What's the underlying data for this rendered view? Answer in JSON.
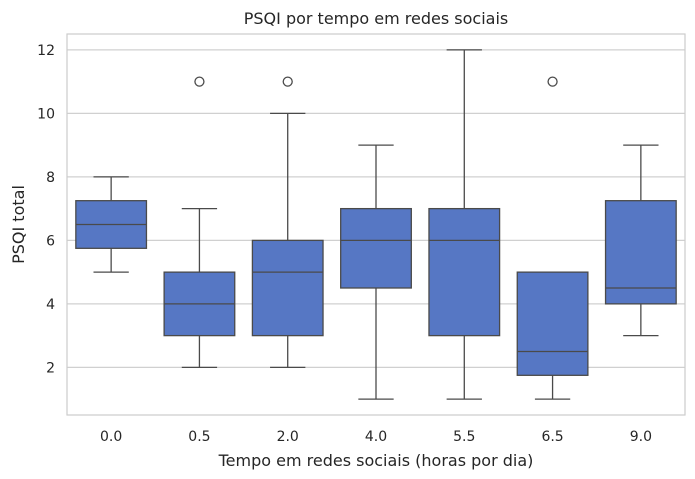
{
  "chart_data": {
    "type": "box",
    "title": "PSQI por tempo em redes sociais",
    "xlabel": "Tempo em redes sociais (horas por dia)",
    "ylabel": "PSQI total",
    "categories": [
      "0.0",
      "0.5",
      "2.0",
      "4.0",
      "5.5",
      "6.5",
      "9.0"
    ],
    "yticks": [
      2,
      4,
      6,
      8,
      10,
      12
    ],
    "ylim": [
      0.5,
      12.5
    ],
    "grid": "horizontal",
    "box_color": "#5677c4",
    "line_color": "#4a4a4a",
    "grid_color": "#d0d0d0",
    "boxes": [
      {
        "category": "0.0",
        "whisker_low": 5,
        "q1": 5.75,
        "median": 6.5,
        "q3": 7.25,
        "whisker_high": 8,
        "outliers": []
      },
      {
        "category": "0.5",
        "whisker_low": 2,
        "q1": 3,
        "median": 4,
        "q3": 5,
        "whisker_high": 7,
        "outliers": [
          11
        ]
      },
      {
        "category": "2.0",
        "whisker_low": 2,
        "q1": 3,
        "median": 5,
        "q3": 6,
        "whisker_high": 10,
        "outliers": [
          11
        ]
      },
      {
        "category": "4.0",
        "whisker_low": 1,
        "q1": 4.5,
        "median": 6,
        "q3": 7,
        "whisker_high": 9,
        "outliers": []
      },
      {
        "category": "5.5",
        "whisker_low": 1,
        "q1": 3,
        "median": 6,
        "q3": 7,
        "whisker_high": 12,
        "outliers": []
      },
      {
        "category": "6.5",
        "whisker_low": 1,
        "q1": 1.75,
        "median": 2.5,
        "q3": 5,
        "whisker_high": 5,
        "outliers": [
          11
        ]
      },
      {
        "category": "9.0",
        "whisker_low": 3,
        "q1": 4,
        "median": 4.5,
        "q3": 7.25,
        "whisker_high": 9,
        "outliers": []
      }
    ]
  }
}
